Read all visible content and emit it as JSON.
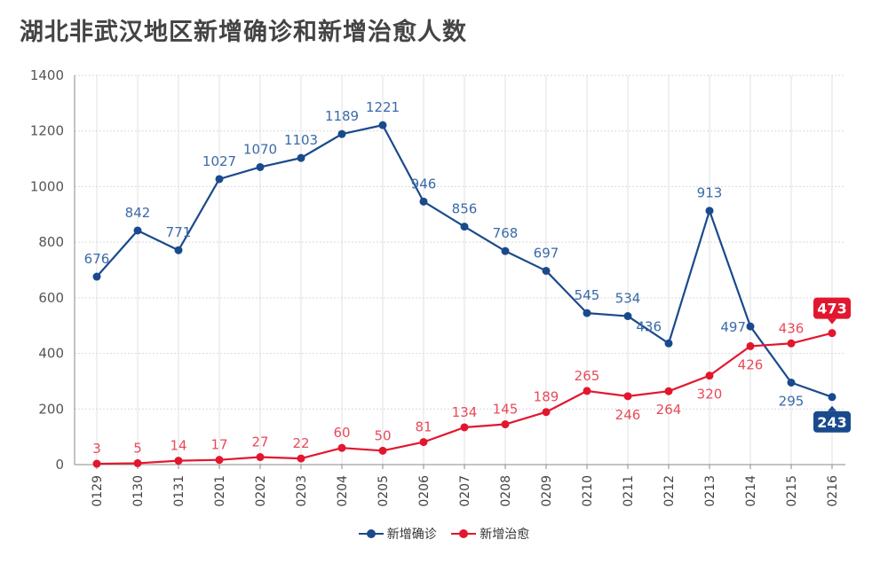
{
  "chart_data": {
    "type": "line",
    "title": "湖北非武汉地区新增确诊和新增治愈人数",
    "categories": [
      "0129",
      "0130",
      "0131",
      "0201",
      "0202",
      "0203",
      "0204",
      "0205",
      "0206",
      "0207",
      "0208",
      "0209",
      "0210",
      "0211",
      "0212",
      "0213",
      "0214",
      "0215",
      "0216"
    ],
    "series": [
      {
        "name": "新增确诊",
        "color": "#1a4a8c",
        "label_color": "#3a6aa8",
        "values": [
          676,
          842,
          771,
          1027,
          1070,
          1103,
          1189,
          1221,
          946,
          856,
          768,
          697,
          545,
          534,
          436,
          913,
          497,
          295,
          243
        ]
      },
      {
        "name": "新增治愈",
        "color": "#e3162f",
        "label_color": "#e84a5a",
        "values": [
          3,
          5,
          14,
          17,
          27,
          22,
          60,
          50,
          81,
          134,
          145,
          189,
          265,
          246,
          264,
          320,
          426,
          436,
          473
        ]
      }
    ],
    "ylim": [
      0,
      1400
    ],
    "yticks": [
      0,
      200,
      400,
      600,
      800,
      1000,
      1200,
      1400
    ],
    "xlabel": "",
    "ylabel": "",
    "legend": "bottom-center",
    "grid": true
  }
}
